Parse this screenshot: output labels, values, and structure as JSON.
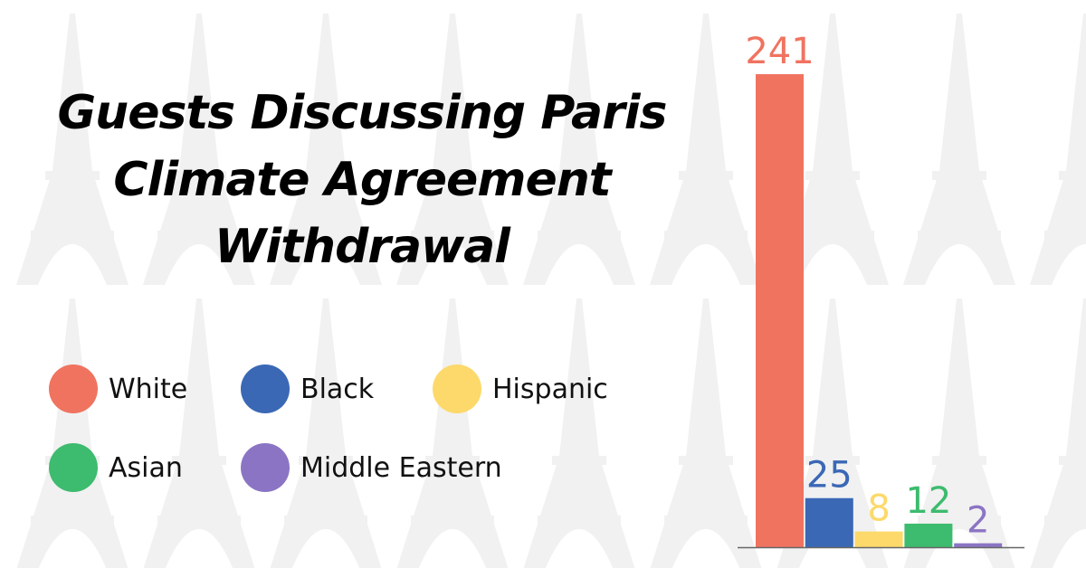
{
  "title_lines": [
    "Guests Discussing Paris",
    "Climate Agreement",
    "Withdrawal"
  ],
  "colors": {
    "White": "#f07360",
    "Black": "#3a68b5",
    "Hispanic": "#fcd96a",
    "Asian": "#3dbb6e",
    "Middle Eastern": "#8b74c4",
    "axis": "#666666",
    "background_icon": "#f1f1f1"
  },
  "background_icon": "eiffel-tower-icon",
  "legend": [
    {
      "label": "White",
      "color": "#f07360"
    },
    {
      "label": "Black",
      "color": "#3a68b5"
    },
    {
      "label": "Hispanic",
      "color": "#fcd96a"
    },
    {
      "label": "Asian",
      "color": "#3dbb6e"
    },
    {
      "label": "Middle Eastern",
      "color": "#8b74c4"
    }
  ],
  "chart_data": {
    "type": "bar",
    "title": "Guests Discussing Paris Climate Agreement Withdrawal",
    "categories": [
      "White",
      "Black",
      "Hispanic",
      "Asian",
      "Middle Eastern"
    ],
    "values": [
      241,
      25,
      8,
      12,
      2
    ],
    "colors": [
      "#f07360",
      "#3a68b5",
      "#fcd96a",
      "#3dbb6e",
      "#8b74c4"
    ],
    "data_labels": [
      "241",
      "25",
      "8",
      "12",
      "2"
    ],
    "xlabel": "",
    "ylabel": "",
    "ylim": [
      0,
      241
    ],
    "grid": false,
    "legend": "left"
  }
}
